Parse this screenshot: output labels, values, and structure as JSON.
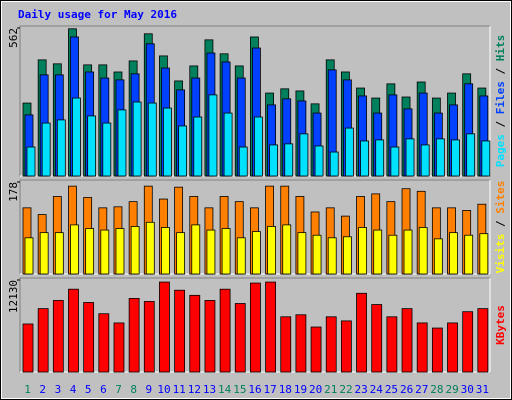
{
  "chart_data": {
    "type": "bar",
    "title": "Daily usage for May 2016",
    "title_color": "#0000ff",
    "categories": [
      "1",
      "2",
      "3",
      "4",
      "5",
      "6",
      "7",
      "8",
      "9",
      "10",
      "11",
      "12",
      "13",
      "14",
      "15",
      "16",
      "17",
      "18",
      "19",
      "20",
      "21",
      "22",
      "23",
      "24",
      "25",
      "26",
      "27",
      "28",
      "29",
      "30",
      "31"
    ],
    "category_label_colors": [
      "#00805c",
      "#0000ff",
      "#0000ff",
      "#0000ff",
      "#0000ff",
      "#0000ff",
      "#00805c",
      "#00805c",
      "#0000ff",
      "#0000ff",
      "#0000ff",
      "#0000ff",
      "#0000ff",
      "#00805c",
      "#00805c",
      "#0000ff",
      "#0000ff",
      "#0000ff",
      "#0000ff",
      "#0000ff",
      "#00805c",
      "#00805c",
      "#0000ff",
      "#0000ff",
      "#0000ff",
      "#0000ff",
      "#0000ff",
      "#00805c",
      "#00805c",
      "#0000ff",
      "#0000ff"
    ],
    "legend_separator": " / ",
    "panels": [
      {
        "ylim": [
          0,
          562
        ],
        "yticks": [
          562
        ],
        "series": [
          {
            "name": "Hits",
            "color": "#00805c",
            "values": [
              277,
              441,
              426,
              559,
              422,
              422,
              395,
              437,
              540,
              456,
              361,
              418,
              517,
              464,
              418,
              528,
              315,
              331,
              323,
              274,
              441,
              395,
              334,
              296,
              350,
              300,
              357,
              296,
              315,
              388,
              334
            ]
          },
          {
            "name": "Files",
            "color": "#0040ff",
            "values": [
              232,
              384,
              384,
              528,
              395,
              372,
              365,
              388,
              502,
              410,
              327,
              372,
              467,
              433,
              372,
              486,
              270,
              293,
              285,
              239,
              403,
              365,
              304,
              239,
              308,
              255,
              315,
              239,
              270,
              350,
              304
            ]
          },
          {
            "name": "Pages",
            "color": "#00e0ff",
            "values": [
              110,
              201,
              213,
              296,
              228,
              201,
              251,
              281,
              277,
              258,
              190,
              224,
              308,
              239,
              110,
              224,
              118,
              122,
              160,
              114,
              91,
              182,
              133,
              137,
              110,
              141,
              118,
              141,
              137,
              160,
              133
            ]
          }
        ]
      },
      {
        "ylim": [
          0,
          178
        ],
        "yticks": [
          178
        ],
        "series": [
          {
            "name": "Sites",
            "color": "#ff8000",
            "values": [
              128,
              115,
              150,
              170,
              148,
              128,
              130,
              140,
              170,
              145,
              168,
              150,
              128,
              150,
              140,
              128,
              170,
              170,
              150,
              120,
              128,
              112,
              150,
              155,
              140,
              165,
              160,
              128,
              128,
              123,
              135
            ]
          },
          {
            "name": "Visits",
            "color": "#ffff00",
            "values": [
              70,
              80,
              80,
              95,
              88,
              85,
              88,
              92,
              100,
              90,
              80,
              95,
              85,
              88,
              70,
              82,
              92,
              95,
              80,
              75,
              70,
              72,
              90,
              85,
              75,
              85,
              90,
              68,
              80,
              75,
              78
            ]
          }
        ]
      },
      {
        "ylim": [
          0,
          12130
        ],
        "yticks": [
          12130
        ],
        "series": [
          {
            "name": "KBytes",
            "color": "#ff0000",
            "values": [
              6334,
              8356,
              9434,
              10917,
              9165,
              7682,
              6469,
              9704,
              9300,
              11860,
              10782,
              10108,
              9434,
              10917,
              9030,
              11726,
              11860,
              7278,
              7547,
              5930,
              7278,
              6739,
              10378,
              8895,
              7278,
              8356,
              6469,
              5795,
              6469,
              7952,
              8356
            ]
          }
        ]
      }
    ]
  }
}
